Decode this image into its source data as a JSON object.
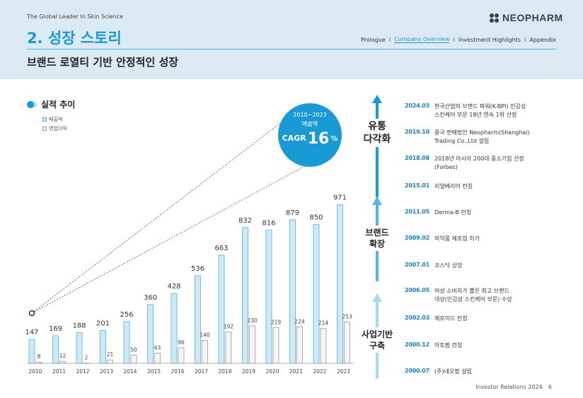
{
  "header": {
    "tagline": "The Global Leader In Skin Science",
    "brand": "NEOPHARM",
    "section_title": "2. 성장 스토리",
    "subtitle": "브랜드 로열티 기반 안정적인 성장",
    "nav": [
      {
        "label": "Prologue",
        "active": false
      },
      {
        "label": "Company Overview",
        "active": true
      },
      {
        "label": "Investment Highlights",
        "active": false
      },
      {
        "label": "Appendix",
        "active": false
      }
    ],
    "nav_separator": "I"
  },
  "chart_title": "실적 추이",
  "cagr": {
    "period": "2010~2023",
    "metric": "매출액",
    "label": "CAGR",
    "value": "16",
    "unit": "%"
  },
  "chart_data": {
    "type": "bar",
    "title": "실적 추이",
    "categories": [
      "2010",
      "2011",
      "2012",
      "2013",
      "2014",
      "2015",
      "2016",
      "2017",
      "2018",
      "2019",
      "2020",
      "2021",
      "2022",
      "2023"
    ],
    "series": [
      {
        "name": "매출액",
        "values": [
          147,
          169,
          188,
          201,
          256,
          360,
          428,
          536,
          663,
          832,
          816,
          879,
          850,
          971
        ]
      },
      {
        "name": "영업이익",
        "values": [
          8,
          12,
          2,
          21,
          50,
          63,
          96,
          140,
          192,
          230,
          219,
          224,
          214,
          253
        ]
      }
    ],
    "legend": [
      "매출액",
      "영업이익"
    ],
    "xlabel": "",
    "ylabel": "",
    "ylim": [
      0,
      1000
    ],
    "grid": false,
    "colors": {
      "revenue_fill": "#cfeaf6",
      "revenue_stroke": "#49b4e3",
      "profit_fill": "#f5f5f5",
      "profit_stroke": "#9a9a9a"
    }
  },
  "timeline": {
    "phases": [
      {
        "label": "유통\n다각화"
      },
      {
        "label": "브랜드\n확장"
      },
      {
        "label": "사업기반\n구축"
      }
    ],
    "events": [
      {
        "date": "2024.03",
        "text": "한국산업의 브랜드 파워(K-BPI) 민감성\n스킨케어 부문 18년 연속 1위 선정"
      },
      {
        "date": "2019.10",
        "text": "중국 판매법인 Neopharm(Shanghai)\nTrading Co.,Ltd 설립"
      },
      {
        "date": "2018.08",
        "text": "2018년 아시아 200대 중소기업 선정\n(Forbes)"
      },
      {
        "date": "2015.01",
        "text": "리얼베리어 런칭"
      },
      {
        "date": "2011.05",
        "text": "Derma-B 런칭"
      },
      {
        "date": "2009.02",
        "text": "의약품 제조업 허가"
      },
      {
        "date": "2007.01",
        "text": "코스닥 상장"
      },
      {
        "date": "2006.05",
        "text": "여성 소비자가 뽑은 최고 브랜드\n대상(민감성 스킨케어 부문) 수상"
      },
      {
        "date": "2002.03",
        "text": "제로이드 런칭"
      },
      {
        "date": "2000.12",
        "text": "아토팜 런칭"
      },
      {
        "date": "2000.07",
        "text": "(주)네오팜 설립"
      }
    ]
  },
  "footer": {
    "label": "Investor Relations 2024",
    "page": "6"
  },
  "colors": {
    "accent": "#1a9ad4",
    "header_bg": "#dcebf3",
    "date": "#1a7fc0"
  }
}
